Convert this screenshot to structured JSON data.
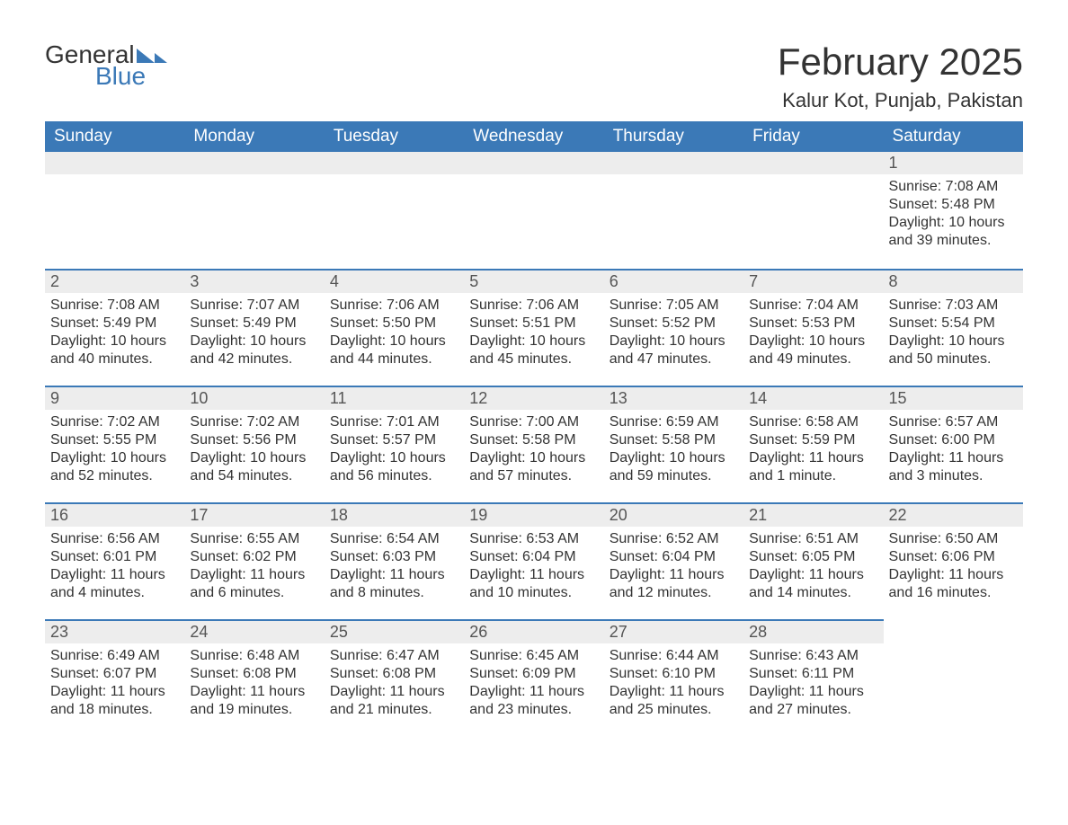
{
  "brand": {
    "general": "General",
    "blue": "Blue",
    "tri_color": "#3b79b7"
  },
  "title": {
    "month": "February 2025",
    "location": "Kalur Kot, Punjab, Pakistan"
  },
  "style": {
    "header_bg": "#3b79b7",
    "header_text": "#ffffff",
    "daynum_bg": "#ededed",
    "border_color": "#3b79b7",
    "body_text": "#333333",
    "title_fontsize": 42,
    "location_fontsize": 22,
    "dayheader_fontsize": 19,
    "daynum_fontsize": 18,
    "content_fontsize": 16
  },
  "day_headers": [
    "Sunday",
    "Monday",
    "Tuesday",
    "Wednesday",
    "Thursday",
    "Friday",
    "Saturday"
  ],
  "weeks": [
    [
      null,
      null,
      null,
      null,
      null,
      null,
      {
        "num": "1",
        "sunrise": "Sunrise: 7:08 AM",
        "sunset": "Sunset: 5:48 PM",
        "daylight": "Daylight: 10 hours and 39 minutes."
      }
    ],
    [
      {
        "num": "2",
        "sunrise": "Sunrise: 7:08 AM",
        "sunset": "Sunset: 5:49 PM",
        "daylight": "Daylight: 10 hours and 40 minutes."
      },
      {
        "num": "3",
        "sunrise": "Sunrise: 7:07 AM",
        "sunset": "Sunset: 5:49 PM",
        "daylight": "Daylight: 10 hours and 42 minutes."
      },
      {
        "num": "4",
        "sunrise": "Sunrise: 7:06 AM",
        "sunset": "Sunset: 5:50 PM",
        "daylight": "Daylight: 10 hours and 44 minutes."
      },
      {
        "num": "5",
        "sunrise": "Sunrise: 7:06 AM",
        "sunset": "Sunset: 5:51 PM",
        "daylight": "Daylight: 10 hours and 45 minutes."
      },
      {
        "num": "6",
        "sunrise": "Sunrise: 7:05 AM",
        "sunset": "Sunset: 5:52 PM",
        "daylight": "Daylight: 10 hours and 47 minutes."
      },
      {
        "num": "7",
        "sunrise": "Sunrise: 7:04 AM",
        "sunset": "Sunset: 5:53 PM",
        "daylight": "Daylight: 10 hours and 49 minutes."
      },
      {
        "num": "8",
        "sunrise": "Sunrise: 7:03 AM",
        "sunset": "Sunset: 5:54 PM",
        "daylight": "Daylight: 10 hours and 50 minutes."
      }
    ],
    [
      {
        "num": "9",
        "sunrise": "Sunrise: 7:02 AM",
        "sunset": "Sunset: 5:55 PM",
        "daylight": "Daylight: 10 hours and 52 minutes."
      },
      {
        "num": "10",
        "sunrise": "Sunrise: 7:02 AM",
        "sunset": "Sunset: 5:56 PM",
        "daylight": "Daylight: 10 hours and 54 minutes."
      },
      {
        "num": "11",
        "sunrise": "Sunrise: 7:01 AM",
        "sunset": "Sunset: 5:57 PM",
        "daylight": "Daylight: 10 hours and 56 minutes."
      },
      {
        "num": "12",
        "sunrise": "Sunrise: 7:00 AM",
        "sunset": "Sunset: 5:58 PM",
        "daylight": "Daylight: 10 hours and 57 minutes."
      },
      {
        "num": "13",
        "sunrise": "Sunrise: 6:59 AM",
        "sunset": "Sunset: 5:58 PM",
        "daylight": "Daylight: 10 hours and 59 minutes."
      },
      {
        "num": "14",
        "sunrise": "Sunrise: 6:58 AM",
        "sunset": "Sunset: 5:59 PM",
        "daylight": "Daylight: 11 hours and 1 minute."
      },
      {
        "num": "15",
        "sunrise": "Sunrise: 6:57 AM",
        "sunset": "Sunset: 6:00 PM",
        "daylight": "Daylight: 11 hours and 3 minutes."
      }
    ],
    [
      {
        "num": "16",
        "sunrise": "Sunrise: 6:56 AM",
        "sunset": "Sunset: 6:01 PM",
        "daylight": "Daylight: 11 hours and 4 minutes."
      },
      {
        "num": "17",
        "sunrise": "Sunrise: 6:55 AM",
        "sunset": "Sunset: 6:02 PM",
        "daylight": "Daylight: 11 hours and 6 minutes."
      },
      {
        "num": "18",
        "sunrise": "Sunrise: 6:54 AM",
        "sunset": "Sunset: 6:03 PM",
        "daylight": "Daylight: 11 hours and 8 minutes."
      },
      {
        "num": "19",
        "sunrise": "Sunrise: 6:53 AM",
        "sunset": "Sunset: 6:04 PM",
        "daylight": "Daylight: 11 hours and 10 minutes."
      },
      {
        "num": "20",
        "sunrise": "Sunrise: 6:52 AM",
        "sunset": "Sunset: 6:04 PM",
        "daylight": "Daylight: 11 hours and 12 minutes."
      },
      {
        "num": "21",
        "sunrise": "Sunrise: 6:51 AM",
        "sunset": "Sunset: 6:05 PM",
        "daylight": "Daylight: 11 hours and 14 minutes."
      },
      {
        "num": "22",
        "sunrise": "Sunrise: 6:50 AM",
        "sunset": "Sunset: 6:06 PM",
        "daylight": "Daylight: 11 hours and 16 minutes."
      }
    ],
    [
      {
        "num": "23",
        "sunrise": "Sunrise: 6:49 AM",
        "sunset": "Sunset: 6:07 PM",
        "daylight": "Daylight: 11 hours and 18 minutes."
      },
      {
        "num": "24",
        "sunrise": "Sunrise: 6:48 AM",
        "sunset": "Sunset: 6:08 PM",
        "daylight": "Daylight: 11 hours and 19 minutes."
      },
      {
        "num": "25",
        "sunrise": "Sunrise: 6:47 AM",
        "sunset": "Sunset: 6:08 PM",
        "daylight": "Daylight: 11 hours and 21 minutes."
      },
      {
        "num": "26",
        "sunrise": "Sunrise: 6:45 AM",
        "sunset": "Sunset: 6:09 PM",
        "daylight": "Daylight: 11 hours and 23 minutes."
      },
      {
        "num": "27",
        "sunrise": "Sunrise: 6:44 AM",
        "sunset": "Sunset: 6:10 PM",
        "daylight": "Daylight: 11 hours and 25 minutes."
      },
      {
        "num": "28",
        "sunrise": "Sunrise: 6:43 AM",
        "sunset": "Sunset: 6:11 PM",
        "daylight": "Daylight: 11 hours and 27 minutes."
      },
      null
    ]
  ]
}
